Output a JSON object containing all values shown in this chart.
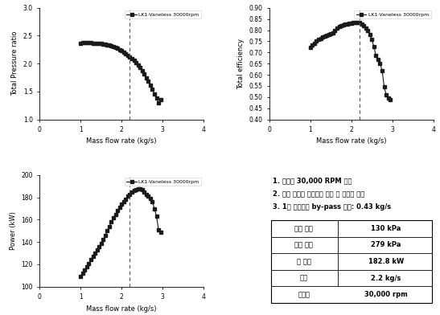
{
  "legend_label": "LK1-Vaneless 30000rpm",
  "dashed_x": 2.2,
  "xlabel": "Mass flow rate (kg/s)",
  "xlim": [
    0,
    4
  ],
  "xticks": [
    0,
    1,
    2,
    3,
    4
  ],
  "plot1": {
    "ylabel": "Total Pressure ratio",
    "ylim": [
      1.0,
      3.0
    ],
    "yticks": [
      1.0,
      1.5,
      2.0,
      2.5,
      3.0
    ],
    "x": [
      1.0,
      1.05,
      1.1,
      1.15,
      1.2,
      1.25,
      1.3,
      1.35,
      1.4,
      1.45,
      1.5,
      1.55,
      1.6,
      1.65,
      1.7,
      1.75,
      1.8,
      1.85,
      1.9,
      1.95,
      2.0,
      2.05,
      2.1,
      2.15,
      2.2,
      2.25,
      2.3,
      2.35,
      2.4,
      2.45,
      2.5,
      2.55,
      2.6,
      2.65,
      2.7,
      2.75,
      2.8,
      2.85,
      2.9,
      2.95
    ],
    "y": [
      2.37,
      2.38,
      2.38,
      2.38,
      2.38,
      2.38,
      2.37,
      2.37,
      2.37,
      2.36,
      2.36,
      2.35,
      2.35,
      2.34,
      2.33,
      2.32,
      2.31,
      2.29,
      2.27,
      2.25,
      2.23,
      2.21,
      2.18,
      2.15,
      2.12,
      2.09,
      2.06,
      2.02,
      1.98,
      1.93,
      1.88,
      1.82,
      1.75,
      1.69,
      1.62,
      1.54,
      1.45,
      1.38,
      1.3,
      1.35
    ]
  },
  "plot2": {
    "ylabel": "Total efficiency",
    "ylim": [
      0.4,
      0.9
    ],
    "yticks": [
      0.4,
      0.45,
      0.5,
      0.55,
      0.6,
      0.65,
      0.7,
      0.75,
      0.8,
      0.85,
      0.9
    ],
    "x": [
      1.0,
      1.05,
      1.1,
      1.15,
      1.2,
      1.25,
      1.3,
      1.35,
      1.4,
      1.45,
      1.5,
      1.55,
      1.6,
      1.65,
      1.7,
      1.75,
      1.8,
      1.85,
      1.9,
      1.95,
      2.0,
      2.05,
      2.1,
      2.15,
      2.2,
      2.25,
      2.3,
      2.35,
      2.4,
      2.45,
      2.5,
      2.55,
      2.6,
      2.65,
      2.7,
      2.75,
      2.8,
      2.85,
      2.9,
      2.95
    ],
    "y": [
      0.722,
      0.732,
      0.742,
      0.75,
      0.757,
      0.763,
      0.769,
      0.774,
      0.778,
      0.782,
      0.785,
      0.788,
      0.8,
      0.808,
      0.815,
      0.82,
      0.824,
      0.827,
      0.829,
      0.831,
      0.832,
      0.833,
      0.834,
      0.834,
      0.833,
      0.828,
      0.82,
      0.81,
      0.797,
      0.78,
      0.757,
      0.725,
      0.685,
      0.668,
      0.65,
      0.62,
      0.545,
      0.51,
      0.495,
      0.49
    ]
  },
  "plot3": {
    "ylabel": "Power (kW)",
    "ylim": [
      100,
      200
    ],
    "yticks": [
      100,
      120,
      140,
      160,
      180,
      200
    ],
    "x": [
      1.0,
      1.05,
      1.1,
      1.15,
      1.2,
      1.25,
      1.3,
      1.35,
      1.4,
      1.45,
      1.5,
      1.55,
      1.6,
      1.65,
      1.7,
      1.75,
      1.8,
      1.85,
      1.9,
      1.95,
      2.0,
      2.05,
      2.1,
      2.15,
      2.2,
      2.25,
      2.3,
      2.35,
      2.4,
      2.45,
      2.5,
      2.55,
      2.6,
      2.65,
      2.7,
      2.75,
      2.8,
      2.85,
      2.9,
      2.95
    ],
    "y": [
      109,
      112,
      115,
      118,
      121,
      124,
      127,
      130,
      133,
      136,
      139,
      142,
      146,
      150,
      154,
      158,
      162,
      165,
      168,
      171,
      174,
      176,
      178,
      181,
      183,
      185,
      186,
      187,
      188,
      188,
      187,
      185,
      183,
      181,
      179,
      176,
      170,
      163,
      151,
      149
    ]
  },
  "table": {
    "title_lines": [
      "1. 회전수 30,000 RPM 제한",
      "2. 최대 효율점 기준으로 유량 및 압력비 선정",
      "3. 1단 출구에서 by-pass 필요: 0.43 kg/s"
    ],
    "rows": [
      [
        "입구 압력",
        "130 kPa"
      ],
      [
        "출구 압력",
        "279 kPa"
      ],
      [
        "축 동력",
        "182.8 kW"
      ],
      [
        "유량",
        "2.2 kg/s"
      ],
      [
        "회전수",
        "30,000 rpm"
      ]
    ]
  },
  "marker": "s",
  "markersize": 3,
  "linewidth": 0.8,
  "color": "#1a1a1a"
}
